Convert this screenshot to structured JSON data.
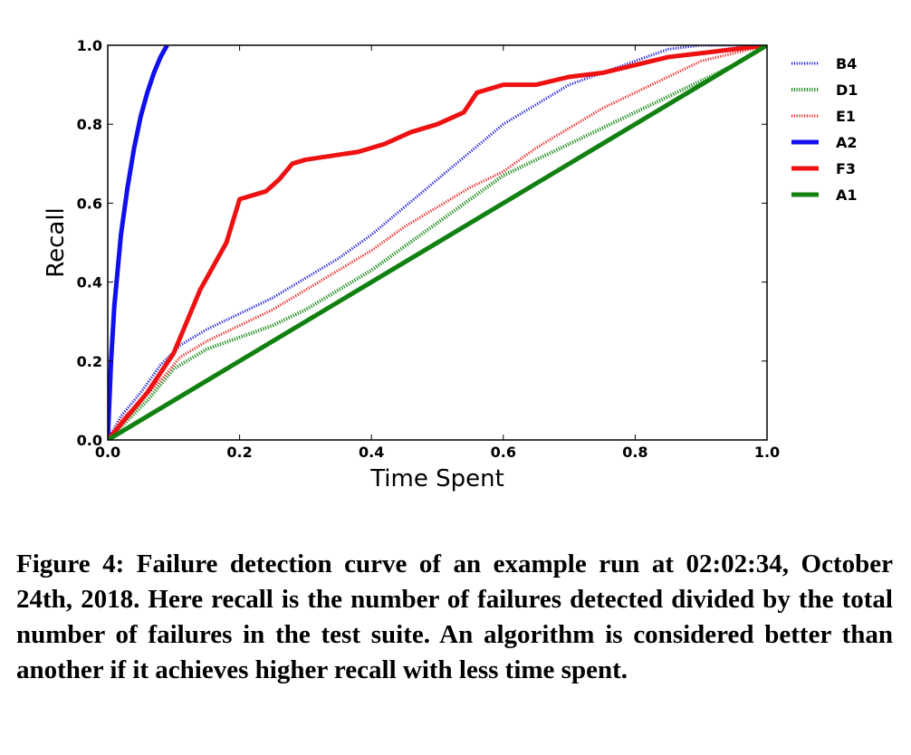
{
  "chart_data": {
    "type": "line",
    "xlabel": "Time Spent",
    "ylabel": "Recall",
    "xlim": [
      0,
      1
    ],
    "ylim": [
      0,
      1
    ],
    "xticks": [
      "0.0",
      "0.2",
      "0.4",
      "0.6",
      "0.8",
      "1.0"
    ],
    "yticks": [
      "0.0",
      "0.2",
      "0.4",
      "0.6",
      "0.8",
      "1.0"
    ],
    "legend_position": "outside-right",
    "grid": false,
    "series": [
      {
        "name": "B4",
        "color": "#1f1fdd",
        "style": "dotted",
        "width": "thin",
        "points": [
          [
            0,
            0
          ],
          [
            0.02,
            0.06
          ],
          [
            0.05,
            0.12
          ],
          [
            0.08,
            0.19
          ],
          [
            0.11,
            0.24
          ],
          [
            0.15,
            0.28
          ],
          [
            0.2,
            0.32
          ],
          [
            0.25,
            0.36
          ],
          [
            0.3,
            0.41
          ],
          [
            0.35,
            0.46
          ],
          [
            0.4,
            0.52
          ],
          [
            0.45,
            0.59
          ],
          [
            0.5,
            0.66
          ],
          [
            0.55,
            0.73
          ],
          [
            0.6,
            0.8
          ],
          [
            0.65,
            0.85
          ],
          [
            0.7,
            0.9
          ],
          [
            0.75,
            0.93
          ],
          [
            0.8,
            0.96
          ],
          [
            0.85,
            0.99
          ],
          [
            0.9,
            1.0
          ],
          [
            1.0,
            1.0
          ]
        ]
      },
      {
        "name": "D1",
        "color": "#1a8a1a",
        "style": "dotted",
        "width": "thick",
        "points": [
          [
            0,
            0
          ],
          [
            0.03,
            0.05
          ],
          [
            0.06,
            0.1
          ],
          [
            0.1,
            0.18
          ],
          [
            0.15,
            0.23
          ],
          [
            0.2,
            0.26
          ],
          [
            0.25,
            0.29
          ],
          [
            0.3,
            0.33
          ],
          [
            0.35,
            0.38
          ],
          [
            0.4,
            0.43
          ],
          [
            0.45,
            0.49
          ],
          [
            0.5,
            0.55
          ],
          [
            0.55,
            0.61
          ],
          [
            0.6,
            0.67
          ],
          [
            0.65,
            0.71
          ],
          [
            0.7,
            0.75
          ],
          [
            0.75,
            0.79
          ],
          [
            0.8,
            0.83
          ],
          [
            0.85,
            0.87
          ],
          [
            0.9,
            0.91
          ],
          [
            0.95,
            0.95
          ],
          [
            1.0,
            1.0
          ]
        ]
      },
      {
        "name": "E1",
        "color": "#ee2222",
        "style": "dotted",
        "width": "thin",
        "points": [
          [
            0,
            0
          ],
          [
            0.02,
            0.05
          ],
          [
            0.05,
            0.1
          ],
          [
            0.08,
            0.15
          ],
          [
            0.11,
            0.21
          ],
          [
            0.15,
            0.25
          ],
          [
            0.2,
            0.29
          ],
          [
            0.25,
            0.33
          ],
          [
            0.3,
            0.38
          ],
          [
            0.35,
            0.43
          ],
          [
            0.4,
            0.48
          ],
          [
            0.45,
            0.54
          ],
          [
            0.5,
            0.59
          ],
          [
            0.55,
            0.64
          ],
          [
            0.6,
            0.68
          ],
          [
            0.65,
            0.74
          ],
          [
            0.7,
            0.79
          ],
          [
            0.75,
            0.84
          ],
          [
            0.8,
            0.88
          ],
          [
            0.85,
            0.92
          ],
          [
            0.9,
            0.96
          ],
          [
            0.95,
            0.98
          ],
          [
            1.0,
            1.0
          ]
        ]
      },
      {
        "name": "A2",
        "color": "#1010ee",
        "style": "solid",
        "width": "thick",
        "points": [
          [
            0,
            0
          ],
          [
            0.005,
            0.2
          ],
          [
            0.01,
            0.34
          ],
          [
            0.02,
            0.52
          ],
          [
            0.03,
            0.64
          ],
          [
            0.04,
            0.74
          ],
          [
            0.05,
            0.82
          ],
          [
            0.06,
            0.88
          ],
          [
            0.07,
            0.93
          ],
          [
            0.08,
            0.97
          ],
          [
            0.09,
            1.0
          ]
        ]
      },
      {
        "name": "F3",
        "color": "#ee1111",
        "style": "solid",
        "width": "thick",
        "points": [
          [
            0,
            0
          ],
          [
            0.02,
            0.04
          ],
          [
            0.04,
            0.08
          ],
          [
            0.06,
            0.12
          ],
          [
            0.08,
            0.17
          ],
          [
            0.1,
            0.22
          ],
          [
            0.12,
            0.3
          ],
          [
            0.14,
            0.38
          ],
          [
            0.16,
            0.44
          ],
          [
            0.18,
            0.5
          ],
          [
            0.2,
            0.61
          ],
          [
            0.22,
            0.62
          ],
          [
            0.24,
            0.63
          ],
          [
            0.26,
            0.66
          ],
          [
            0.28,
            0.7
          ],
          [
            0.3,
            0.71
          ],
          [
            0.34,
            0.72
          ],
          [
            0.38,
            0.73
          ],
          [
            0.42,
            0.75
          ],
          [
            0.46,
            0.78
          ],
          [
            0.5,
            0.8
          ],
          [
            0.54,
            0.83
          ],
          [
            0.56,
            0.88
          ],
          [
            0.6,
            0.9
          ],
          [
            0.65,
            0.9
          ],
          [
            0.7,
            0.92
          ],
          [
            0.75,
            0.93
          ],
          [
            0.8,
            0.95
          ],
          [
            0.85,
            0.97
          ],
          [
            0.9,
            0.98
          ],
          [
            0.95,
            0.99
          ],
          [
            1.0,
            1.0
          ]
        ]
      },
      {
        "name": "A1",
        "color": "#108010",
        "style": "solid",
        "width": "thick",
        "points": [
          [
            0,
            0
          ],
          [
            1.0,
            1.0
          ]
        ]
      }
    ]
  },
  "caption": "Figure 4: Failure detection curve of an example run at 02:02:34, October 24th, 2018. Here recall is the number of failures detected divided by the total number of failures in the test suite. An algorithm is considered better than another if it achieves higher recall with less time spent."
}
